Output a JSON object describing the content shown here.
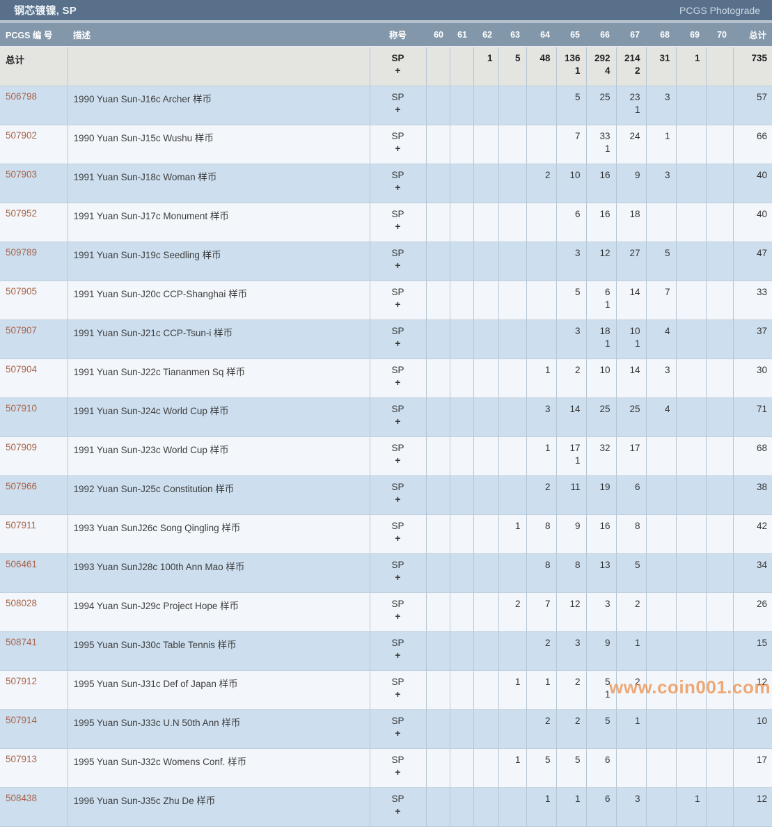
{
  "page": {
    "title": "钢芯镀镍, SP",
    "photograde_link": "PCGS Photograde"
  },
  "table": {
    "columns": {
      "pcgs_no": "PCGS 编 号",
      "desc": "描述",
      "designation": "称号",
      "grades": [
        "60",
        "61",
        "62",
        "63",
        "64",
        "65",
        "66",
        "67",
        "68",
        "69",
        "70"
      ],
      "total": "总计"
    },
    "designation_line1": "SP",
    "designation_line2": "+",
    "totals_row": {
      "label": "总计",
      "counts": [
        "",
        "",
        "1",
        "5",
        "48",
        "136",
        "292",
        "214",
        "31",
        "1",
        ""
      ],
      "plus_counts": [
        "",
        "",
        "",
        "",
        "",
        "1",
        "4",
        "2",
        "",
        "",
        ""
      ],
      "total": "735"
    },
    "rows": [
      {
        "pcgs_no": "506798",
        "desc": "1990 Yuan Sun-J16c Archer 样币",
        "counts": [
          "",
          "",
          "",
          "",
          "",
          "5",
          "25",
          "23",
          "3",
          "",
          ""
        ],
        "plus_counts": [
          "",
          "",
          "",
          "",
          "",
          "",
          "",
          "1",
          "",
          "",
          ""
        ],
        "total": "57"
      },
      {
        "pcgs_no": "507902",
        "desc": "1990 Yuan Sun-J15c Wushu 样币",
        "counts": [
          "",
          "",
          "",
          "",
          "",
          "7",
          "33",
          "24",
          "1",
          "",
          ""
        ],
        "plus_counts": [
          "",
          "",
          "",
          "",
          "",
          "",
          "1",
          "",
          "",
          "",
          ""
        ],
        "total": "66"
      },
      {
        "pcgs_no": "507903",
        "desc": "1991 Yuan Sun-J18c Woman 样币",
        "counts": [
          "",
          "",
          "",
          "",
          "2",
          "10",
          "16",
          "9",
          "3",
          "",
          ""
        ],
        "plus_counts": [
          "",
          "",
          "",
          "",
          "",
          "",
          "",
          "",
          "",
          "",
          ""
        ],
        "total": "40"
      },
      {
        "pcgs_no": "507952",
        "desc": "1991 Yuan Sun-J17c Monument 样币",
        "counts": [
          "",
          "",
          "",
          "",
          "",
          "6",
          "16",
          "18",
          "",
          "",
          ""
        ],
        "plus_counts": [
          "",
          "",
          "",
          "",
          "",
          "",
          "",
          "",
          "",
          "",
          ""
        ],
        "total": "40"
      },
      {
        "pcgs_no": "509789",
        "desc": "1991 Yuan Sun-J19c Seedling 样币",
        "counts": [
          "",
          "",
          "",
          "",
          "",
          "3",
          "12",
          "27",
          "5",
          "",
          ""
        ],
        "plus_counts": [
          "",
          "",
          "",
          "",
          "",
          "",
          "",
          "",
          "",
          "",
          ""
        ],
        "total": "47"
      },
      {
        "pcgs_no": "507905",
        "desc": "1991 Yuan Sun-J20c CCP-Shanghai 样币",
        "counts": [
          "",
          "",
          "",
          "",
          "",
          "5",
          "6",
          "14",
          "7",
          "",
          ""
        ],
        "plus_counts": [
          "",
          "",
          "",
          "",
          "",
          "",
          "1",
          "",
          "",
          "",
          ""
        ],
        "total": "33"
      },
      {
        "pcgs_no": "507907",
        "desc": "1991 Yuan Sun-J21c CCP-Tsun-i 样币",
        "counts": [
          "",
          "",
          "",
          "",
          "",
          "3",
          "18",
          "10",
          "4",
          "",
          ""
        ],
        "plus_counts": [
          "",
          "",
          "",
          "",
          "",
          "",
          "1",
          "1",
          "",
          "",
          ""
        ],
        "total": "37"
      },
      {
        "pcgs_no": "507904",
        "desc": "1991 Yuan Sun-J22c Tiananmen Sq 样币",
        "counts": [
          "",
          "",
          "",
          "",
          "1",
          "2",
          "10",
          "14",
          "3",
          "",
          ""
        ],
        "plus_counts": [
          "",
          "",
          "",
          "",
          "",
          "",
          "",
          "",
          "",
          "",
          ""
        ],
        "total": "30"
      },
      {
        "pcgs_no": "507910",
        "desc": "1991 Yuan Sun-J24c World Cup 样币",
        "counts": [
          "",
          "",
          "",
          "",
          "3",
          "14",
          "25",
          "25",
          "4",
          "",
          ""
        ],
        "plus_counts": [
          "",
          "",
          "",
          "",
          "",
          "",
          "",
          "",
          "",
          "",
          ""
        ],
        "total": "71"
      },
      {
        "pcgs_no": "507909",
        "desc": "1991 Yuan Sun-J23c World Cup 样币",
        "counts": [
          "",
          "",
          "",
          "",
          "1",
          "17",
          "32",
          "17",
          "",
          "",
          ""
        ],
        "plus_counts": [
          "",
          "",
          "",
          "",
          "",
          "1",
          "",
          "",
          "",
          "",
          ""
        ],
        "total": "68"
      },
      {
        "pcgs_no": "507966",
        "desc": "1992 Yuan Sun-J25c Constitution 样币",
        "counts": [
          "",
          "",
          "",
          "",
          "2",
          "11",
          "19",
          "6",
          "",
          "",
          ""
        ],
        "plus_counts": [
          "",
          "",
          "",
          "",
          "",
          "",
          "",
          "",
          "",
          "",
          ""
        ],
        "total": "38"
      },
      {
        "pcgs_no": "507911",
        "desc": "1993 Yuan SunJ26c Song Qingling 样币",
        "counts": [
          "",
          "",
          "",
          "1",
          "8",
          "9",
          "16",
          "8",
          "",
          "",
          ""
        ],
        "plus_counts": [
          "",
          "",
          "",
          "",
          "",
          "",
          "",
          "",
          "",
          "",
          ""
        ],
        "total": "42"
      },
      {
        "pcgs_no": "506461",
        "desc": "1993 Yuan SunJ28c 100th Ann Mao 样币",
        "counts": [
          "",
          "",
          "",
          "",
          "8",
          "8",
          "13",
          "5",
          "",
          "",
          ""
        ],
        "plus_counts": [
          "",
          "",
          "",
          "",
          "",
          "",
          "",
          "",
          "",
          "",
          ""
        ],
        "total": "34"
      },
      {
        "pcgs_no": "508028",
        "desc": "1994 Yuan Sun-J29c Project Hope 样币",
        "counts": [
          "",
          "",
          "",
          "2",
          "7",
          "12",
          "3",
          "2",
          "",
          "",
          ""
        ],
        "plus_counts": [
          "",
          "",
          "",
          "",
          "",
          "",
          "",
          "",
          "",
          "",
          ""
        ],
        "total": "26"
      },
      {
        "pcgs_no": "508741",
        "desc": "1995 Yuan Sun-J30c Table Tennis 样币",
        "counts": [
          "",
          "",
          "",
          "",
          "2",
          "3",
          "9",
          "1",
          "",
          "",
          ""
        ],
        "plus_counts": [
          "",
          "",
          "",
          "",
          "",
          "",
          "",
          "",
          "",
          "",
          ""
        ],
        "total": "15"
      },
      {
        "pcgs_no": "507912",
        "desc": "1995 Yuan Sun-J31c Def of Japan 样币",
        "counts": [
          "",
          "",
          "",
          "1",
          "1",
          "2",
          "5",
          "2",
          "",
          "",
          ""
        ],
        "plus_counts": [
          "",
          "",
          "",
          "",
          "",
          "",
          "1",
          "",
          "",
          "",
          ""
        ],
        "total": "12"
      },
      {
        "pcgs_no": "507914",
        "desc": "1995 Yuan Sun-J33c U.N 50th Ann 样币",
        "counts": [
          "",
          "",
          "",
          "",
          "2",
          "2",
          "5",
          "1",
          "",
          "",
          ""
        ],
        "plus_counts": [
          "",
          "",
          "",
          "",
          "",
          "",
          "",
          "",
          "",
          "",
          ""
        ],
        "total": "10"
      },
      {
        "pcgs_no": "507913",
        "desc": "1995 Yuan Sun-J32c Womens Conf. 样币",
        "counts": [
          "",
          "",
          "",
          "1",
          "5",
          "5",
          "6",
          "",
          "",
          "",
          ""
        ],
        "plus_counts": [
          "",
          "",
          "",
          "",
          "",
          "",
          "",
          "",
          "",
          "",
          ""
        ],
        "total": "17"
      },
      {
        "pcgs_no": "508438",
        "desc": "1996 Yuan Sun-J35c Zhu De 样币",
        "counts": [
          "",
          "",
          "",
          "",
          "1",
          "1",
          "6",
          "3",
          "",
          "1",
          ""
        ],
        "plus_counts": [
          "",
          "",
          "",
          "",
          "",
          "",
          "",
          "",
          "",
          "",
          ""
        ],
        "total": "12"
      }
    ]
  },
  "watermark": "www.coin001.com",
  "colors": {
    "topbar_bg": "#58708a",
    "header_bg": "#8297aa",
    "header_text": "#ffffff",
    "row_blue": "#cddfef",
    "row_light": "#f3f7fb",
    "totals_bg": "#e4e4e1",
    "border": "#b6c6d4",
    "link": "#a8644c",
    "text": "#333333",
    "watermark": "#ed9350"
  }
}
